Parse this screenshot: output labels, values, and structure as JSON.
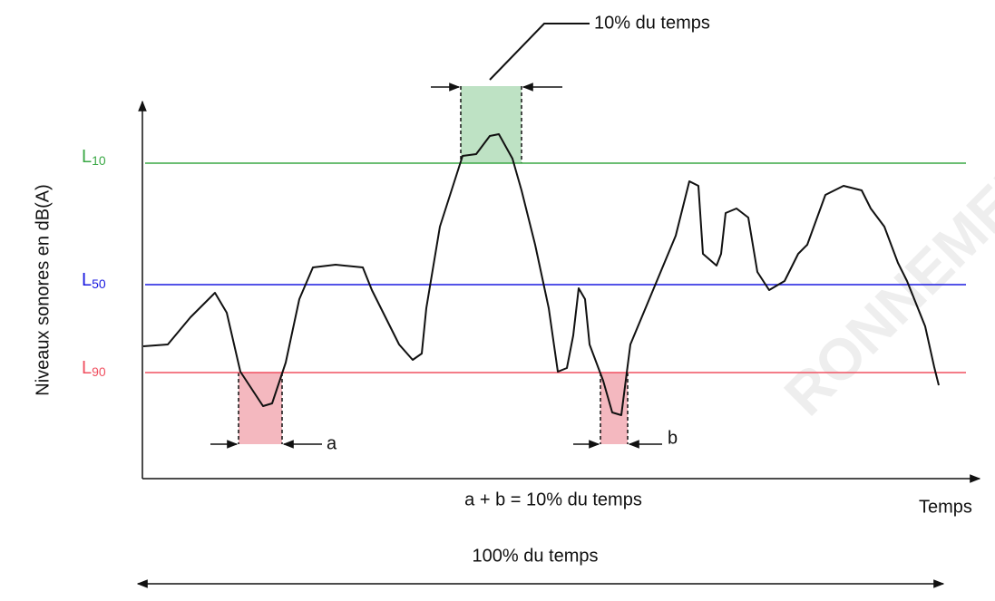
{
  "axis_label": "Niveaux sonores en dB(A)",
  "levels": [
    {
      "letter": "L",
      "sub": "10"
    },
    {
      "letter": "L",
      "sub": "50"
    },
    {
      "letter": "L",
      "sub": "90"
    }
  ],
  "top_note": "10% du temps",
  "label_a": "a",
  "label_b": "b",
  "sum_note": "a + b = 10% du temps",
  "x_axis_label": "Temps",
  "total_note": "100% du temps",
  "watermark": "RONNEMEN"
}
